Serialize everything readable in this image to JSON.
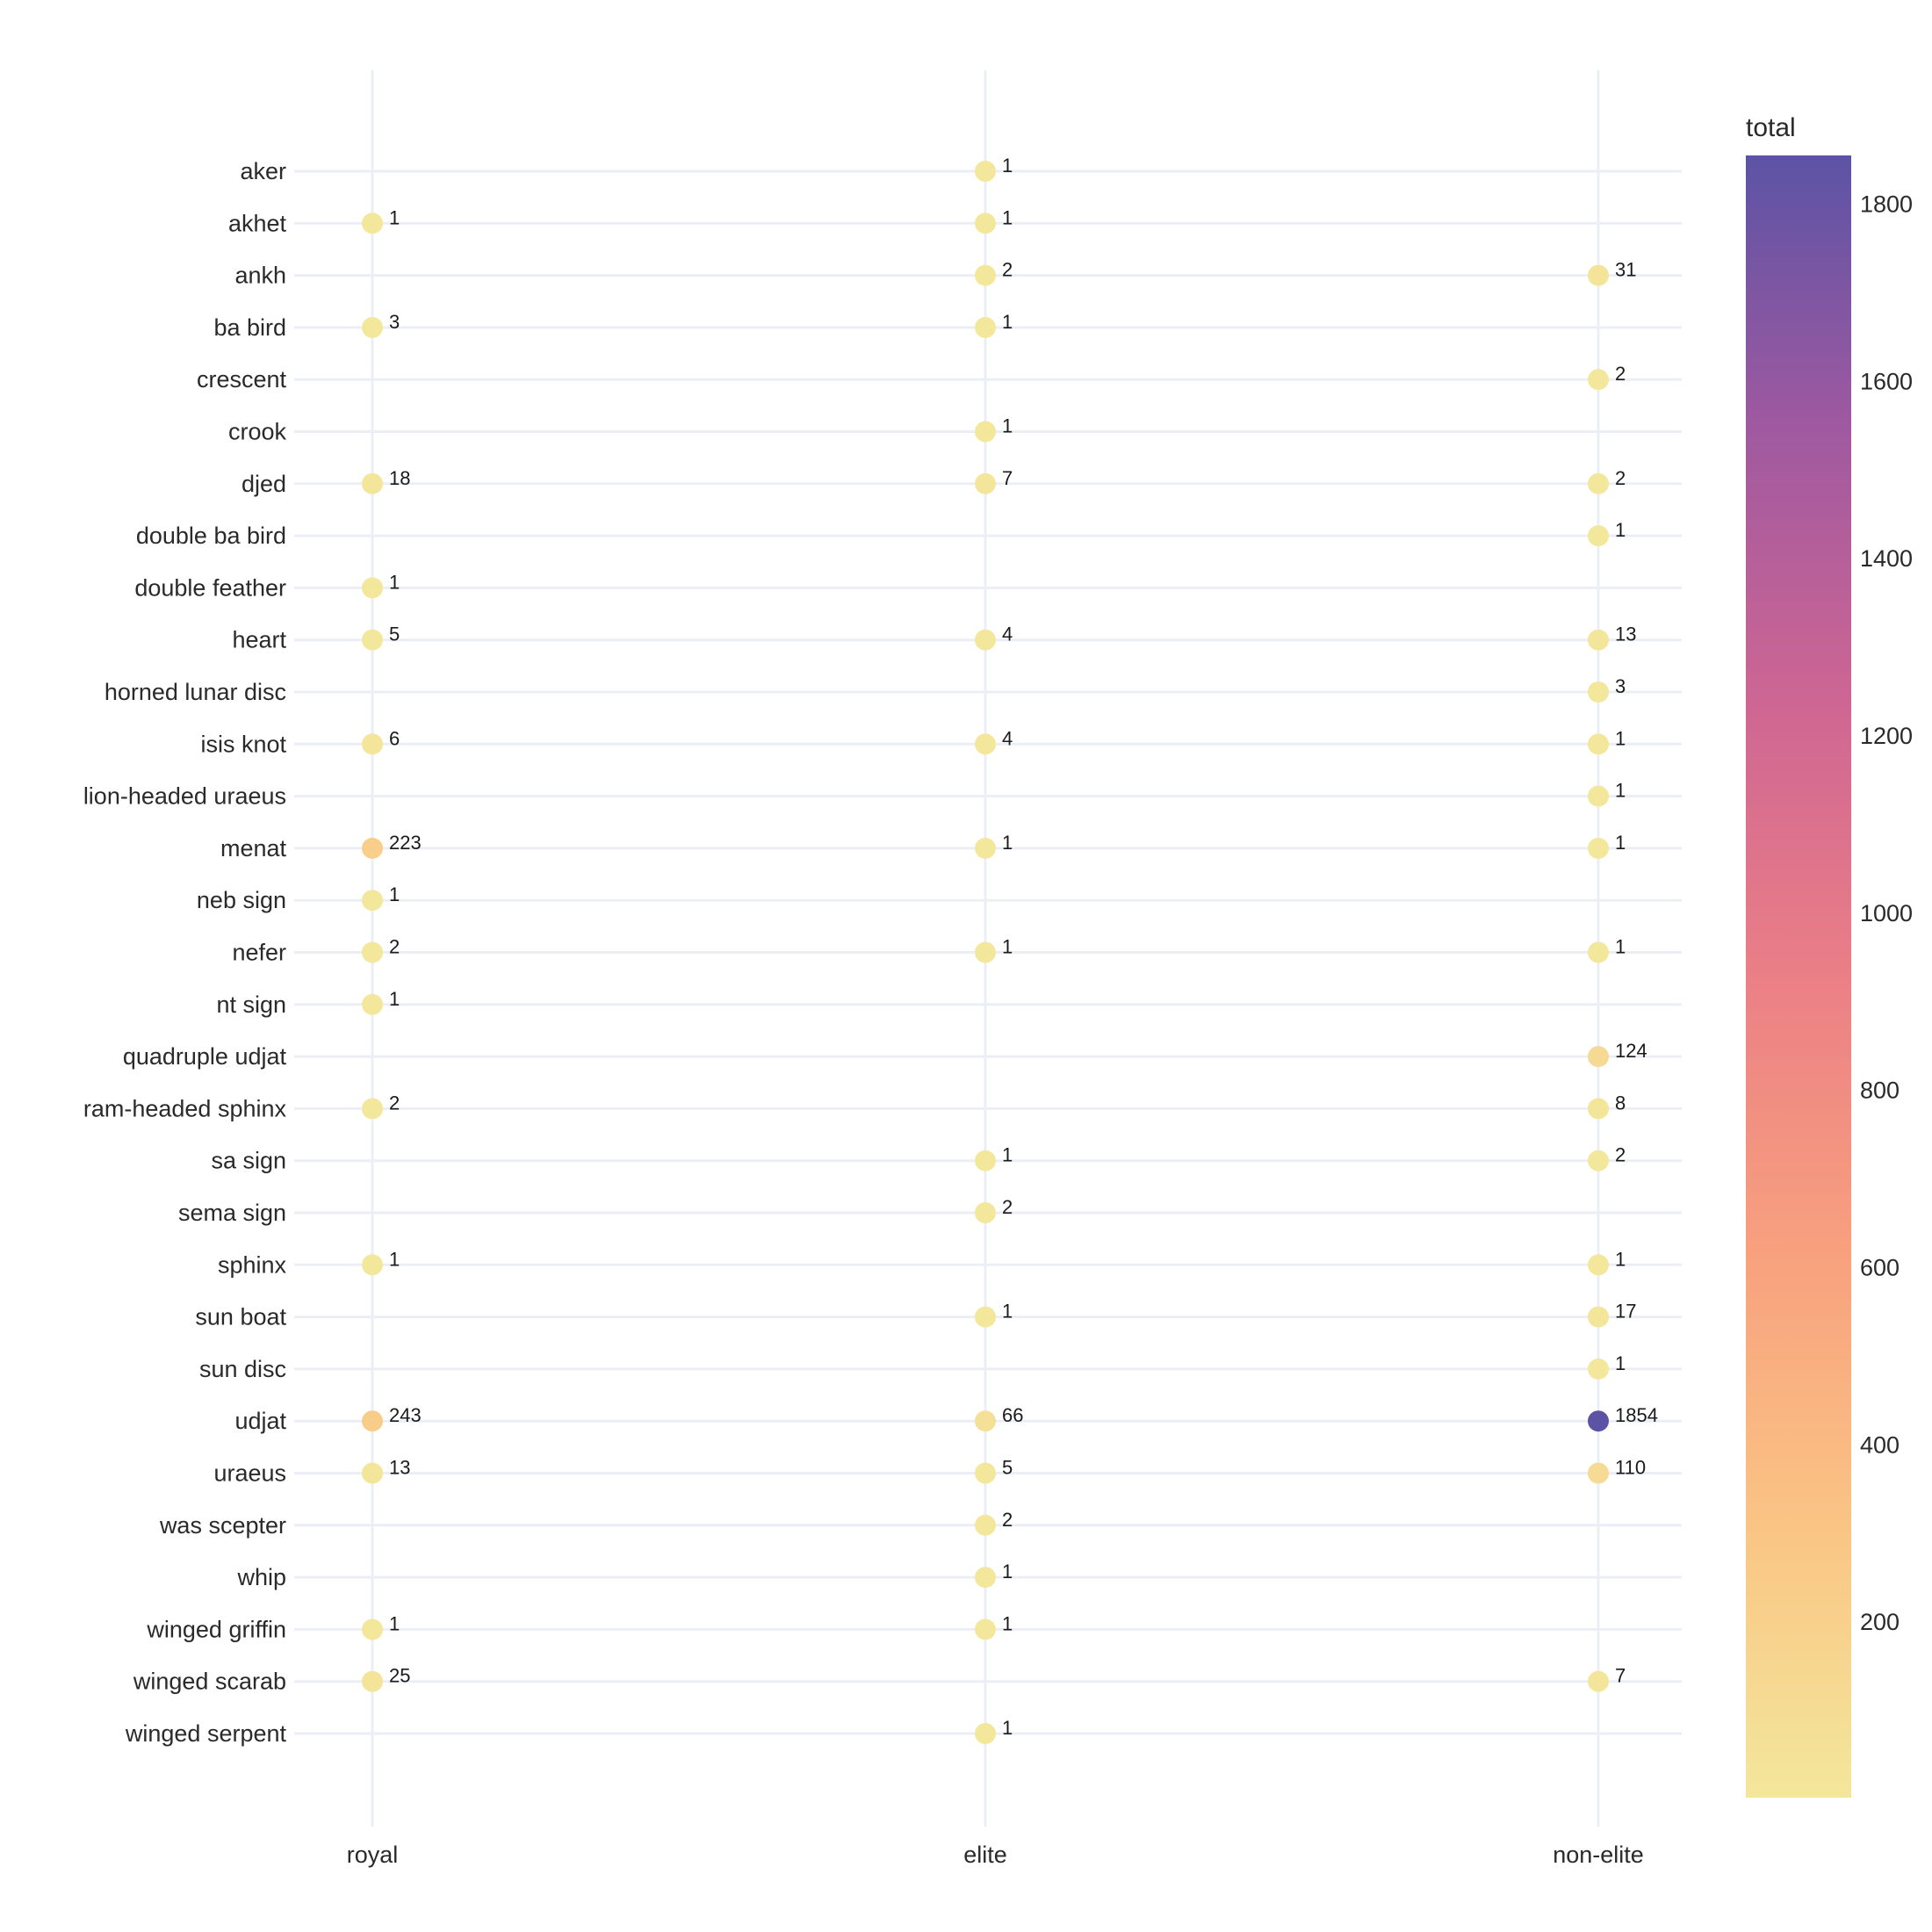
{
  "chart_data": {
    "type": "scatter",
    "x_categories": [
      "royal",
      "elite",
      "non-elite"
    ],
    "y_categories": [
      "aker",
      "akhet",
      "ankh",
      "ba bird",
      "crescent",
      "crook",
      "djed",
      "double ba bird",
      "double feather",
      "heart",
      "horned lunar disc",
      "isis knot",
      "lion-headed uraeus",
      "menat",
      "neb sign",
      "nefer",
      "nt sign",
      "quadruple udjat",
      "ram-headed sphinx",
      "sa sign",
      "sema sign",
      "sphinx",
      "sun boat",
      "sun disc",
      "udjat",
      "uraeus",
      "was scepter",
      "whip",
      "winged griffin",
      "winged scarab",
      "winged serpent"
    ],
    "points": [
      {
        "y": "aker",
        "x": "elite",
        "value": 1
      },
      {
        "y": "akhet",
        "x": "royal",
        "value": 1
      },
      {
        "y": "akhet",
        "x": "elite",
        "value": 1
      },
      {
        "y": "ankh",
        "x": "elite",
        "value": 2
      },
      {
        "y": "ankh",
        "x": "non-elite",
        "value": 31
      },
      {
        "y": "ba bird",
        "x": "royal",
        "value": 3
      },
      {
        "y": "ba bird",
        "x": "elite",
        "value": 1
      },
      {
        "y": "crescent",
        "x": "non-elite",
        "value": 2
      },
      {
        "y": "crook",
        "x": "elite",
        "value": 1
      },
      {
        "y": "djed",
        "x": "royal",
        "value": 18
      },
      {
        "y": "djed",
        "x": "elite",
        "value": 7
      },
      {
        "y": "djed",
        "x": "non-elite",
        "value": 2
      },
      {
        "y": "double ba bird",
        "x": "non-elite",
        "value": 1
      },
      {
        "y": "double feather",
        "x": "royal",
        "value": 1
      },
      {
        "y": "heart",
        "x": "royal",
        "value": 5
      },
      {
        "y": "heart",
        "x": "elite",
        "value": 4
      },
      {
        "y": "heart",
        "x": "non-elite",
        "value": 13
      },
      {
        "y": "horned lunar disc",
        "x": "non-elite",
        "value": 3
      },
      {
        "y": "isis knot",
        "x": "royal",
        "value": 6
      },
      {
        "y": "isis knot",
        "x": "elite",
        "value": 4
      },
      {
        "y": "isis knot",
        "x": "non-elite",
        "value": 1
      },
      {
        "y": "lion-headed uraeus",
        "x": "non-elite",
        "value": 1
      },
      {
        "y": "menat",
        "x": "royal",
        "value": 223
      },
      {
        "y": "menat",
        "x": "elite",
        "value": 1
      },
      {
        "y": "menat",
        "x": "non-elite",
        "value": 1
      },
      {
        "y": "neb sign",
        "x": "royal",
        "value": 1
      },
      {
        "y": "nefer",
        "x": "royal",
        "value": 2
      },
      {
        "y": "nefer",
        "x": "elite",
        "value": 1
      },
      {
        "y": "nefer",
        "x": "non-elite",
        "value": 1
      },
      {
        "y": "nt sign",
        "x": "royal",
        "value": 1
      },
      {
        "y": "quadruple udjat",
        "x": "non-elite",
        "value": 124
      },
      {
        "y": "ram-headed sphinx",
        "x": "royal",
        "value": 2
      },
      {
        "y": "ram-headed sphinx",
        "x": "non-elite",
        "value": 8
      },
      {
        "y": "sa sign",
        "x": "elite",
        "value": 1
      },
      {
        "y": "sa sign",
        "x": "non-elite",
        "value": 2
      },
      {
        "y": "sema sign",
        "x": "elite",
        "value": 2
      },
      {
        "y": "sphinx",
        "x": "royal",
        "value": 1
      },
      {
        "y": "sphinx",
        "x": "non-elite",
        "value": 1
      },
      {
        "y": "sun boat",
        "x": "elite",
        "value": 1
      },
      {
        "y": "sun boat",
        "x": "non-elite",
        "value": 17
      },
      {
        "y": "sun disc",
        "x": "non-elite",
        "value": 1
      },
      {
        "y": "udjat",
        "x": "royal",
        "value": 243
      },
      {
        "y": "udjat",
        "x": "elite",
        "value": 66
      },
      {
        "y": "udjat",
        "x": "non-elite",
        "value": 1854
      },
      {
        "y": "uraeus",
        "x": "royal",
        "value": 13
      },
      {
        "y": "uraeus",
        "x": "elite",
        "value": 5
      },
      {
        "y": "uraeus",
        "x": "non-elite",
        "value": 110
      },
      {
        "y": "was scepter",
        "x": "elite",
        "value": 2
      },
      {
        "y": "whip",
        "x": "elite",
        "value": 1
      },
      {
        "y": "winged griffin",
        "x": "royal",
        "value": 1
      },
      {
        "y": "winged griffin",
        "x": "elite",
        "value": 1
      },
      {
        "y": "winged scarab",
        "x": "royal",
        "value": 25
      },
      {
        "y": "winged scarab",
        "x": "non-elite",
        "value": 7
      },
      {
        "y": "winged serpent",
        "x": "elite",
        "value": 1
      }
    ],
    "colorbar": {
      "title": "total",
      "range": [
        1,
        1854
      ],
      "ticks": [
        200,
        400,
        600,
        800,
        1000,
        1200,
        1400,
        1600,
        1800
      ],
      "colorscale": [
        "#f3e79b",
        "#fac484",
        "#f8a07e",
        "#eb7f86",
        "#ce6693",
        "#a059a0",
        "#5c53a5"
      ]
    },
    "grid": true,
    "gridline_color": "#ebeff5"
  }
}
